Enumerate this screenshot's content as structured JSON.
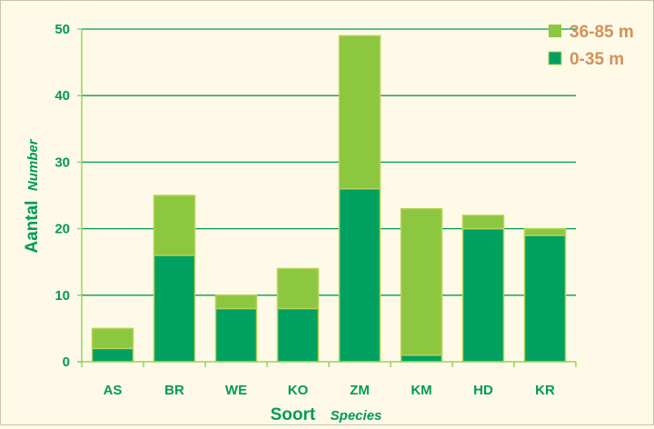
{
  "chart_data": {
    "type": "bar",
    "stacked": true,
    "categories": [
      "AS",
      "BR",
      "WE",
      "KO",
      "ZM",
      "KM",
      "HD",
      "KR"
    ],
    "series": [
      {
        "name": "0-35 m",
        "values": [
          2,
          16,
          8,
          8,
          26,
          1,
          20,
          19
        ],
        "color": "#00a060"
      },
      {
        "name": "36-85 m",
        "values": [
          3,
          9,
          2,
          6,
          23,
          22,
          2,
          1
        ],
        "color": "#8dc63f"
      }
    ],
    "ylim": [
      0,
      50
    ],
    "yticks": [
      0,
      10,
      20,
      30,
      40,
      50
    ],
    "grid": true,
    "legend_position": "top-right",
    "xlabel": {
      "main": "Soort",
      "sub": "Species"
    },
    "ylabel": {
      "main": "Aantal",
      "sub": "Number"
    },
    "colors": {
      "text": "#009a55",
      "legend_text": "#d4905a",
      "grid": "#009a55",
      "axis": "#9bcf6b",
      "bar_border": "#b7d25a"
    }
  }
}
